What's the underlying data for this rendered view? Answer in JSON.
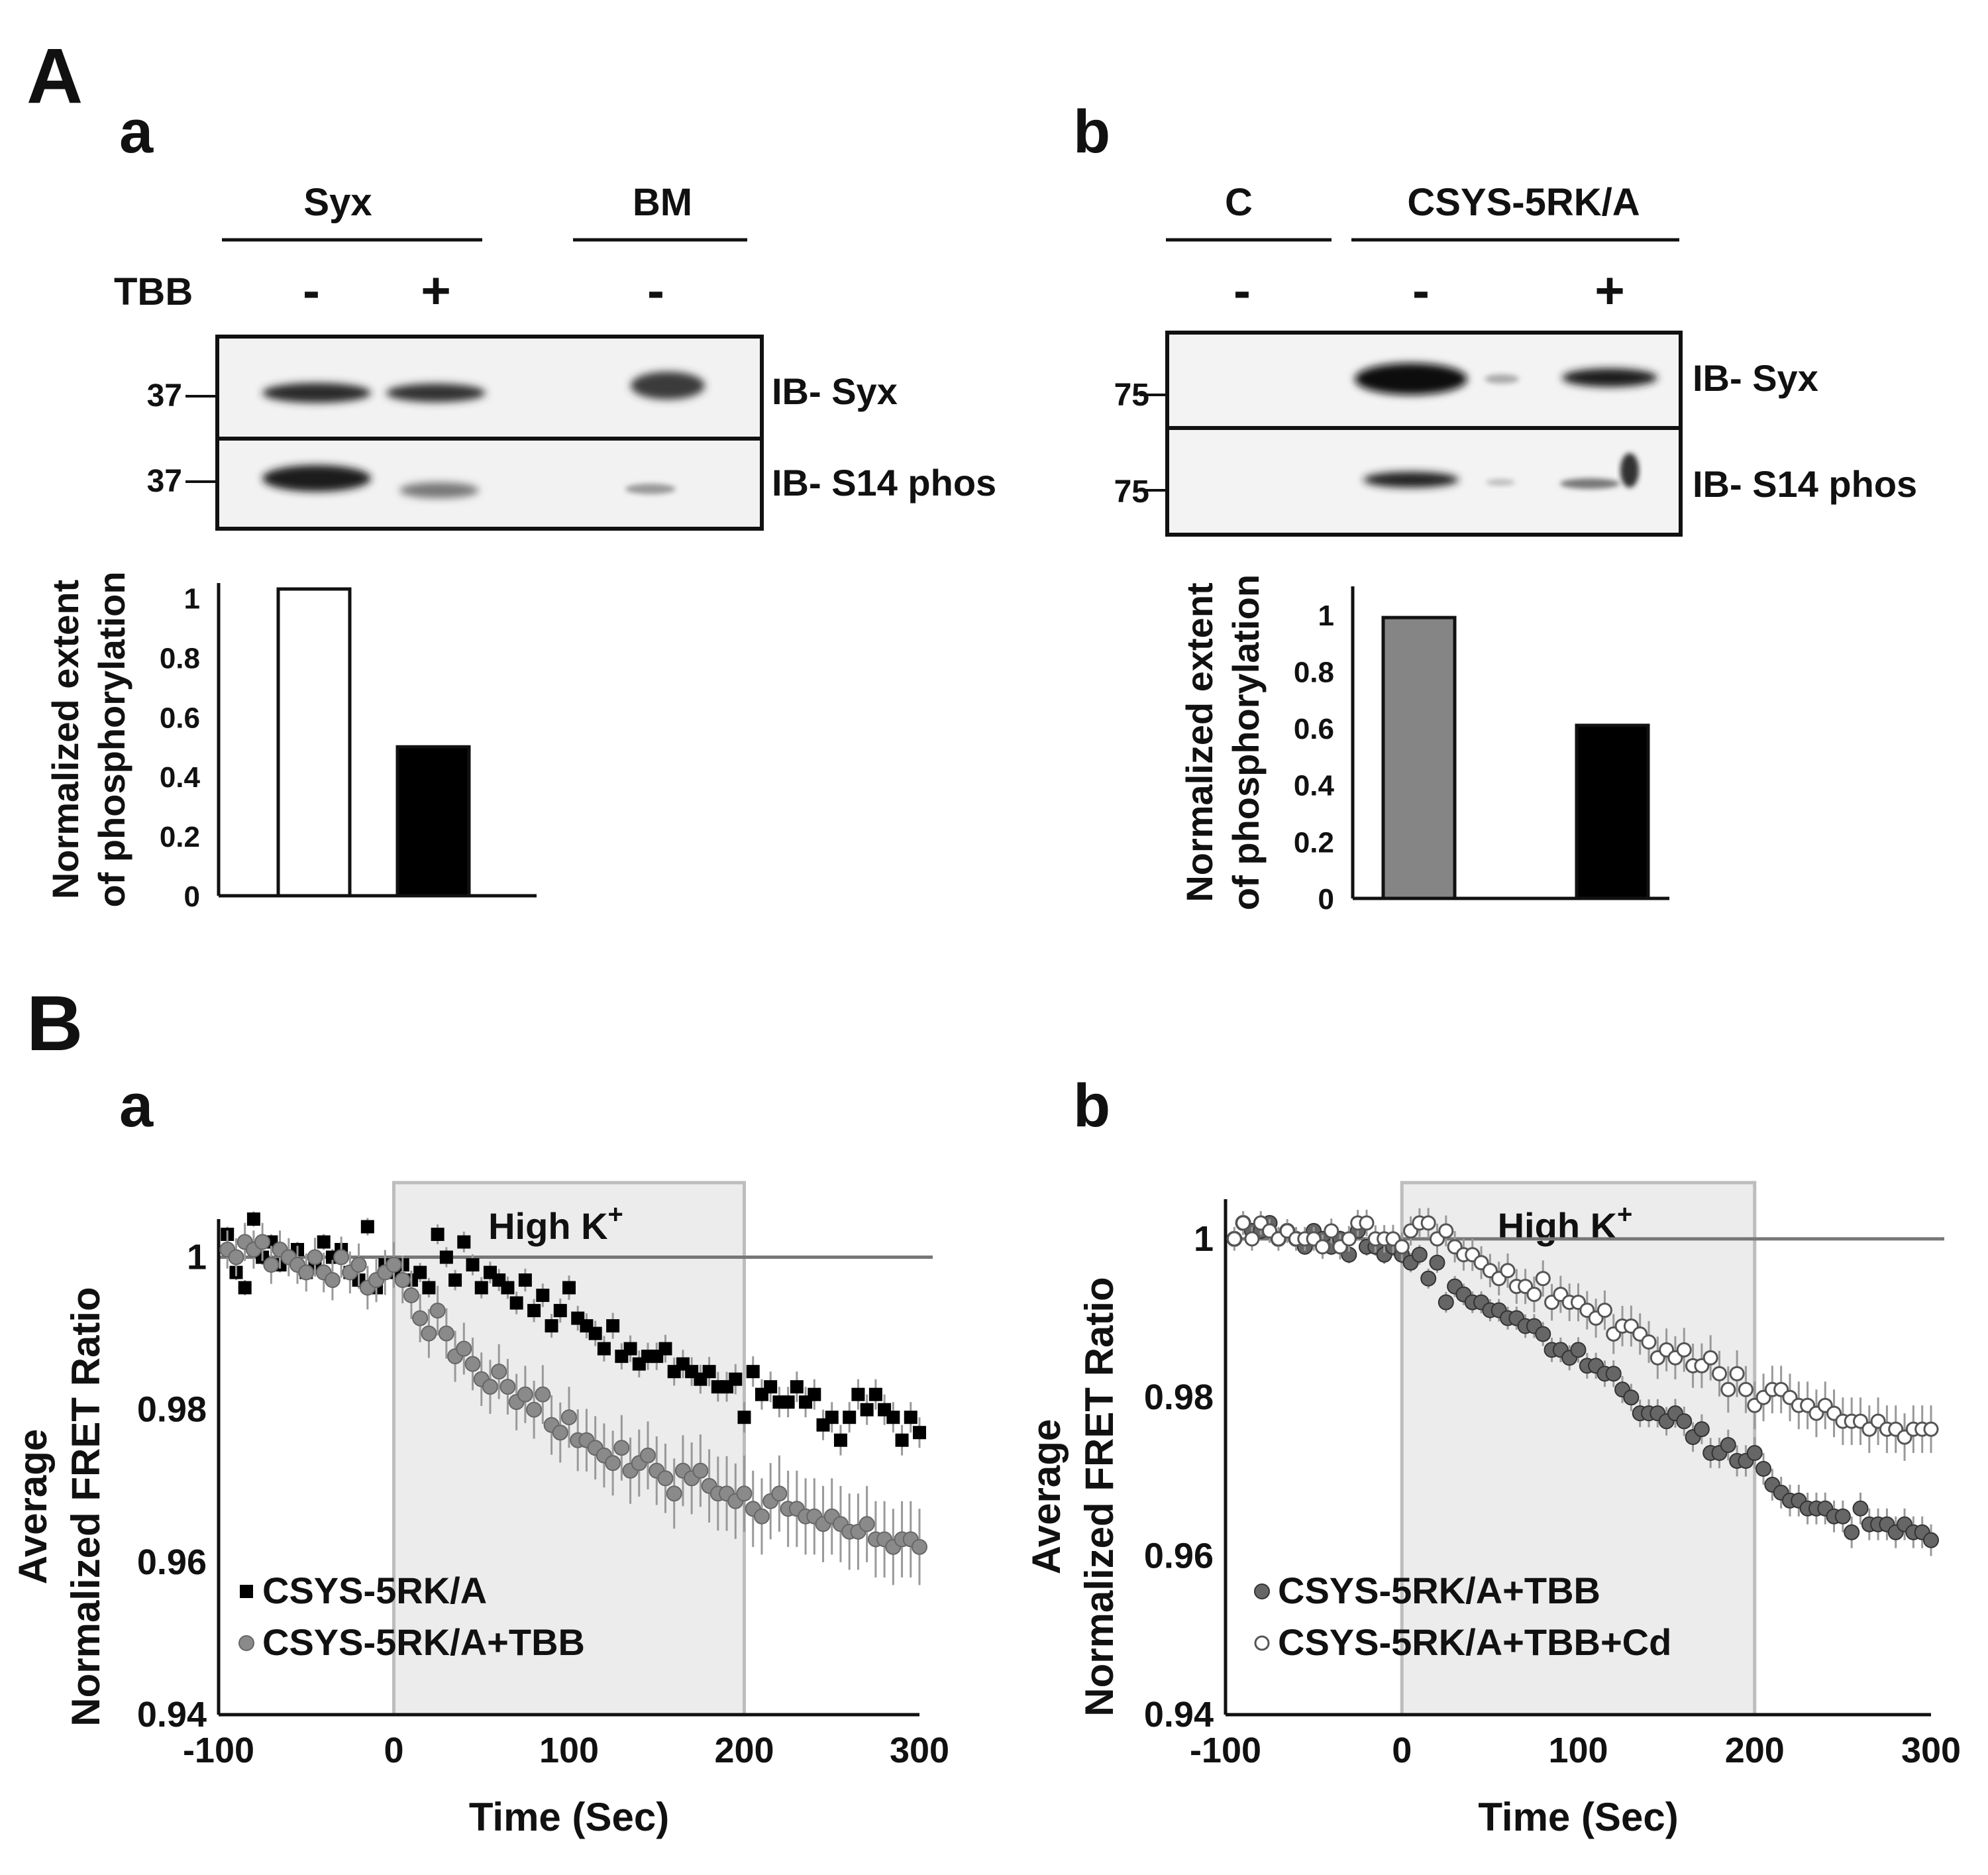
{
  "colors": {
    "ink": "#111111",
    "white_bar": "#ffffff",
    "gray_bar": "#858585",
    "black_bar": "#000000",
    "shade": "#ececec",
    "shade_edge": "#bdbdbd",
    "gray_marker": "#8a8a8a",
    "dark_marker": "#666666",
    "ref_line": "#777777"
  },
  "panel_A": {
    "label": "A",
    "a": {
      "label": "a",
      "groups": [
        "Syx",
        "BM"
      ],
      "treatment_label": "TBB",
      "signs": [
        "-",
        "+",
        "-"
      ],
      "mw_top": "37",
      "mw_bottom": "37",
      "blot_top_label": "IB- Syx",
      "blot_bottom_label": "IB- S14 phos"
    },
    "b": {
      "label": "b",
      "groups": [
        "C",
        "CSYS-5RK/A"
      ],
      "signs": [
        "-",
        "-",
        "+"
      ],
      "mw_top": "75",
      "mw_bottom": "75",
      "blot_top_label": "IB- Syx",
      "blot_bottom_label": "IB- S14 phos"
    }
  },
  "panel_B": {
    "label": "B",
    "a": {
      "label": "a"
    },
    "b": {
      "label": "b"
    }
  },
  "chart_data": [
    {
      "id": "Aa-bar",
      "type": "bar",
      "ylabel_lines": [
        "Normalized extent",
        "of phosphorylation"
      ],
      "yticks": [
        "0",
        "0.2",
        "0.4",
        "0.6",
        "0.8",
        "1"
      ],
      "ylim": [
        0,
        1.05
      ],
      "series": [
        {
          "name": "Syx TBB -",
          "value": 1.03,
          "fill": "white"
        },
        {
          "name": "Syx TBB +",
          "value": 0.5,
          "fill": "black"
        }
      ]
    },
    {
      "id": "Ab-bar",
      "type": "bar",
      "ylabel_lines": [
        "Normalized extent",
        "of phosphorylation"
      ],
      "yticks": [
        "0",
        "0.2",
        "0.4",
        "0.6",
        "0.8",
        "1"
      ],
      "ylim": [
        0,
        1.1
      ],
      "series": [
        {
          "name": "CSYS-5RK/A TBB -",
          "value": 0.99,
          "fill": "gray"
        },
        {
          "name": "CSYS-5RK/A TBB +",
          "value": 0.61,
          "fill": "black"
        }
      ]
    },
    {
      "id": "Ba-scatter",
      "type": "scatter",
      "title_lines": [
        "Average",
        "Normalized FRET Ratio"
      ],
      "xlabel": "Time (Sec)",
      "xticks": [
        "-100",
        "0",
        "100",
        "200",
        "300"
      ],
      "yticks": [
        "0.94",
        "0.96",
        "0.98",
        "1"
      ],
      "xlim": [
        -100,
        300
      ],
      "ylim": [
        0.94,
        1.005
      ],
      "shaded_region": {
        "x": [
          0,
          200
        ],
        "label_main": "High K",
        "label_sup": "+"
      },
      "reference_line": 1.0,
      "legend": [
        "CSYS-5RK/A",
        "CSYS-5RK/A+TBB"
      ],
      "series": [
        {
          "name": "CSYS-5RK/A",
          "marker": "black-square",
          "x_start": -95,
          "x_step": 5,
          "y": [
            1.003,
            0.998,
            0.996,
            1.005,
            1.0,
            1.002,
            0.999,
            1.0,
            1.001,
            0.998,
            0.999,
            1.002,
            1.0,
            1.001,
            0.998,
            0.997,
            1.004,
            0.996,
            0.999,
            0.998,
            0.999,
            0.997,
            0.998,
            0.996,
            1.003,
            1.0,
            0.997,
            1.002,
            0.999,
            0.996,
            0.998,
            0.997,
            0.996,
            0.994,
            0.997,
            0.993,
            0.995,
            0.991,
            0.993,
            0.996,
            0.992,
            0.991,
            0.99,
            0.988,
            0.991,
            0.987,
            0.988,
            0.986,
            0.987,
            0.987,
            0.988,
            0.985,
            0.986,
            0.985,
            0.984,
            0.985,
            0.983,
            0.983,
            0.984,
            0.979,
            0.985,
            0.982,
            0.983,
            0.981,
            0.981,
            0.983,
            0.981,
            0.982,
            0.978,
            0.979,
            0.976,
            0.979,
            0.982,
            0.98,
            0.982,
            0.98,
            0.979,
            0.976,
            0.979,
            0.977
          ],
          "err": 0.002
        },
        {
          "name": "CSYS-5RK/A+TBB",
          "marker": "gray-circle",
          "x_start": -95,
          "x_step": 5,
          "y": [
            1.001,
            1.0,
            1.002,
            1.001,
            1.002,
            0.999,
            1.001,
            1.0,
            0.999,
            0.998,
            1.0,
            0.998,
            0.997,
            1.0,
            0.998,
            0.999,
            0.996,
            0.997,
            0.998,
            0.999,
            0.997,
            0.995,
            0.992,
            0.99,
            0.993,
            0.99,
            0.987,
            0.988,
            0.986,
            0.984,
            0.983,
            0.985,
            0.983,
            0.981,
            0.982,
            0.98,
            0.982,
            0.978,
            0.977,
            0.979,
            0.976,
            0.976,
            0.975,
            0.974,
            0.973,
            0.975,
            0.972,
            0.973,
            0.974,
            0.972,
            0.971,
            0.969,
            0.972,
            0.971,
            0.972,
            0.97,
            0.969,
            0.969,
            0.968,
            0.969,
            0.967,
            0.966,
            0.968,
            0.969,
            0.967,
            0.967,
            0.966,
            0.966,
            0.965,
            0.966,
            0.965,
            0.964,
            0.964,
            0.965,
            0.963,
            0.963,
            0.962,
            0.963,
            0.963,
            0.962
          ],
          "err": 0.005
        }
      ]
    },
    {
      "id": "Bb-scatter",
      "type": "scatter",
      "title_lines": [
        "Average",
        "Normalized FRET Ratio"
      ],
      "xlabel": "Time (Sec)",
      "xticks": [
        "-100",
        "0",
        "100",
        "200",
        "300"
      ],
      "yticks": [
        "0.94",
        "0.96",
        "0.98",
        "1"
      ],
      "xlim": [
        -100,
        300
      ],
      "ylim": [
        0.94,
        1.005
      ],
      "shaded_region": {
        "x": [
          0,
          200
        ],
        "label_main": "High K",
        "label_sup": "+"
      },
      "reference_line": 1.0,
      "legend": [
        "CSYS-5RK/A+TBB",
        "CSYS-5RK/A+TBB+Cd"
      ],
      "series": [
        {
          "name": "CSYS-5RK/A+TBB",
          "marker": "dark-circle",
          "x_start": -95,
          "x_step": 5,
          "y": [
            1.0,
            1.002,
            1.001,
            1.001,
            1.002,
            1.0,
            1.001,
            1.0,
            0.999,
            1.001,
            1.0,
            0.999,
            1.0,
            0.998,
            1.001,
            0.999,
            0.999,
            0.998,
            0.999,
            0.998,
            0.997,
            0.998,
            0.995,
            0.997,
            0.992,
            0.994,
            0.993,
            0.992,
            0.992,
            0.991,
            0.991,
            0.99,
            0.99,
            0.989,
            0.989,
            0.988,
            0.986,
            0.986,
            0.985,
            0.986,
            0.984,
            0.984,
            0.983,
            0.983,
            0.981,
            0.98,
            0.978,
            0.978,
            0.978,
            0.977,
            0.978,
            0.977,
            0.975,
            0.976,
            0.973,
            0.973,
            0.974,
            0.972,
            0.972,
            0.973,
            0.971,
            0.969,
            0.968,
            0.967,
            0.967,
            0.966,
            0.966,
            0.966,
            0.965,
            0.965,
            0.963,
            0.966,
            0.964,
            0.964,
            0.964,
            0.963,
            0.964,
            0.963,
            0.963,
            0.962
          ],
          "err": 0.002
        },
        {
          "name": "CSYS-5RK/A+TBB+Cd",
          "marker": "open-circle",
          "x_start": -95,
          "x_step": 5,
          "y": [
            1.0,
            1.002,
            1.0,
            1.002,
            1.001,
            1.0,
            1.001,
            1.0,
            1.0,
            1.0,
            0.999,
            1.001,
            0.999,
            1.0,
            1.002,
            1.002,
            1.0,
            1.0,
            1.0,
            0.999,
            1.001,
            1.002,
            1.002,
            1.0,
            1.001,
            0.999,
            0.998,
            0.998,
            0.997,
            0.996,
            0.995,
            0.996,
            0.994,
            0.994,
            0.993,
            0.995,
            0.992,
            0.993,
            0.992,
            0.992,
            0.991,
            0.99,
            0.991,
            0.988,
            0.989,
            0.989,
            0.988,
            0.987,
            0.985,
            0.986,
            0.985,
            0.986,
            0.984,
            0.984,
            0.985,
            0.983,
            0.981,
            0.983,
            0.981,
            0.979,
            0.98,
            0.981,
            0.981,
            0.98,
            0.979,
            0.979,
            0.978,
            0.979,
            0.978,
            0.977,
            0.977,
            0.977,
            0.976,
            0.977,
            0.976,
            0.976,
            0.975,
            0.976,
            0.976,
            0.976
          ],
          "err": 0.003
        }
      ]
    }
  ]
}
